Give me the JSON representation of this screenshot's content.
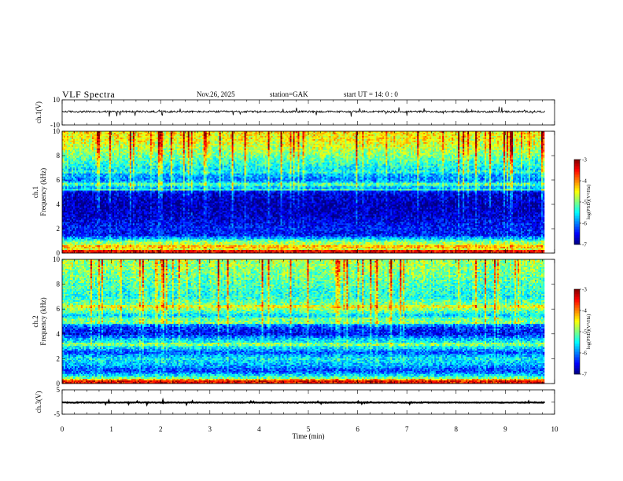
{
  "header": {
    "title": "VLF Spectra",
    "date": "Nov.26, 2025",
    "station": "station=GAK",
    "start_ut": "start UT =   14: 0  : 0"
  },
  "colors": {
    "background": "#ffffff",
    "axis": "#000000",
    "waveform": "#000000",
    "spectrogram_low": "#00008b",
    "spectrogram_high": "#ff0000"
  },
  "chart_data": [
    {
      "type": "line",
      "name": "ch1-waveform",
      "ylabel": "ch.1(V)",
      "xlim": [
        0,
        10
      ],
      "ylim": [
        -10,
        10
      ],
      "yticks": [
        -10,
        10
      ],
      "trace_extent_min": [
        0,
        9.8
      ],
      "level": 0.6,
      "noise_amplitude": 1.5
    },
    {
      "type": "heatmap",
      "name": "ch1-spectrogram",
      "ylabel_line1": "ch.1",
      "ylabel_line2": "Frequency (kHz)",
      "xlim": [
        0,
        10
      ],
      "ylim": [
        0,
        10
      ],
      "yticks": [
        0,
        2,
        4,
        6,
        8,
        10
      ],
      "data_extent_min": [
        0,
        9.8
      ],
      "colorbar": {
        "label": "log(PSD)(V²/Hz)",
        "range": [
          -7,
          -3
        ],
        "ticks": [
          -3,
          -4,
          -5,
          -6,
          -7
        ]
      },
      "psd_profile": [
        {
          "khz": 0.0,
          "log_psd": -3.6
        },
        {
          "khz": 0.3,
          "log_psd": -4.6
        },
        {
          "khz": 0.8,
          "log_psd": -4.8
        },
        {
          "khz": 1.0,
          "log_psd": -5.3
        },
        {
          "khz": 1.5,
          "log_psd": -6.5
        },
        {
          "khz": 2.0,
          "log_psd": -6.4
        },
        {
          "khz": 3.0,
          "log_psd": -6.7
        },
        {
          "khz": 4.0,
          "log_psd": -6.8
        },
        {
          "khz": 5.0,
          "log_psd": -6.6
        },
        {
          "khz": 5.3,
          "log_psd": -5.8
        },
        {
          "khz": 5.7,
          "log_psd": -5.5
        },
        {
          "khz": 6.0,
          "log_psd": -6.0
        },
        {
          "khz": 7.0,
          "log_psd": -5.5
        },
        {
          "khz": 8.0,
          "log_psd": -5.0
        },
        {
          "khz": 9.0,
          "log_psd": -4.6
        },
        {
          "khz": 10.0,
          "log_psd": -4.4
        }
      ],
      "lines_khz": [
        {
          "khz": 0.15,
          "log_psd": -3.5
        },
        {
          "khz": 0.5,
          "log_psd": -4.3
        },
        {
          "khz": 0.9,
          "log_psd": -5.0
        },
        {
          "khz": 5.2,
          "log_psd": -5.3
        },
        {
          "khz": 5.6,
          "log_psd": -5.2
        },
        {
          "khz": 6.7,
          "log_psd": -5.4
        }
      ]
    },
    {
      "type": "heatmap",
      "name": "ch2-spectrogram",
      "ylabel_line1": "ch.2",
      "ylabel_line2": "Frequency (kHz)",
      "xlim": [
        0,
        10
      ],
      "ylim": [
        0,
        10
      ],
      "yticks": [
        0,
        2,
        4,
        6,
        8,
        10
      ],
      "data_extent_min": [
        0,
        9.8
      ],
      "colorbar": {
        "label": "log(PSD)(V²/Hz)",
        "range": [
          -7,
          -3
        ],
        "ticks": [
          -3,
          -4,
          -5,
          -6,
          -7
        ]
      },
      "psd_profile": [
        {
          "khz": 0.0,
          "log_psd": -3.8
        },
        {
          "khz": 0.4,
          "log_psd": -5.0
        },
        {
          "khz": 1.0,
          "log_psd": -6.3
        },
        {
          "khz": 1.5,
          "log_psd": -5.8
        },
        {
          "khz": 2.0,
          "log_psd": -5.5
        },
        {
          "khz": 2.5,
          "log_psd": -6.2
        },
        {
          "khz": 3.0,
          "log_psd": -5.4
        },
        {
          "khz": 3.5,
          "log_psd": -5.6
        },
        {
          "khz": 4.0,
          "log_psd": -6.5
        },
        {
          "khz": 4.5,
          "log_psd": -6.3
        },
        {
          "khz": 5.0,
          "log_psd": -5.4
        },
        {
          "khz": 5.5,
          "log_psd": -5.6
        },
        {
          "khz": 6.0,
          "log_psd": -4.9
        },
        {
          "khz": 6.5,
          "log_psd": -5.1
        },
        {
          "khz": 7.0,
          "log_psd": -5.4
        },
        {
          "khz": 8.0,
          "log_psd": -5.2
        },
        {
          "khz": 9.0,
          "log_psd": -5.0
        },
        {
          "khz": 10.0,
          "log_psd": -4.8
        }
      ],
      "lines_khz": [
        {
          "khz": 0.1,
          "log_psd": -3.5
        },
        {
          "khz": 0.3,
          "log_psd": -4.2
        },
        {
          "khz": 3.2,
          "log_psd": -5.0
        },
        {
          "khz": 4.9,
          "log_psd": -5.0
        },
        {
          "khz": 5.2,
          "log_psd": -5.1
        },
        {
          "khz": 6.2,
          "log_psd": -4.6
        }
      ]
    },
    {
      "type": "line",
      "name": "ch3-waveform",
      "ylabel": "ch.3(V)",
      "xlabel": "Time  (min)",
      "xlim": [
        0,
        10
      ],
      "xticks": [
        0,
        1,
        2,
        3,
        4,
        5,
        6,
        7,
        8,
        9,
        10
      ],
      "ylim": [
        -5,
        5
      ],
      "yticks": [
        -5,
        0,
        5
      ],
      "yticklabels": [
        "-5",
        "",
        "5"
      ],
      "trace_extent_min": [
        0,
        9.8
      ],
      "level": -0.2,
      "noise_amplitude": 0.25
    }
  ]
}
